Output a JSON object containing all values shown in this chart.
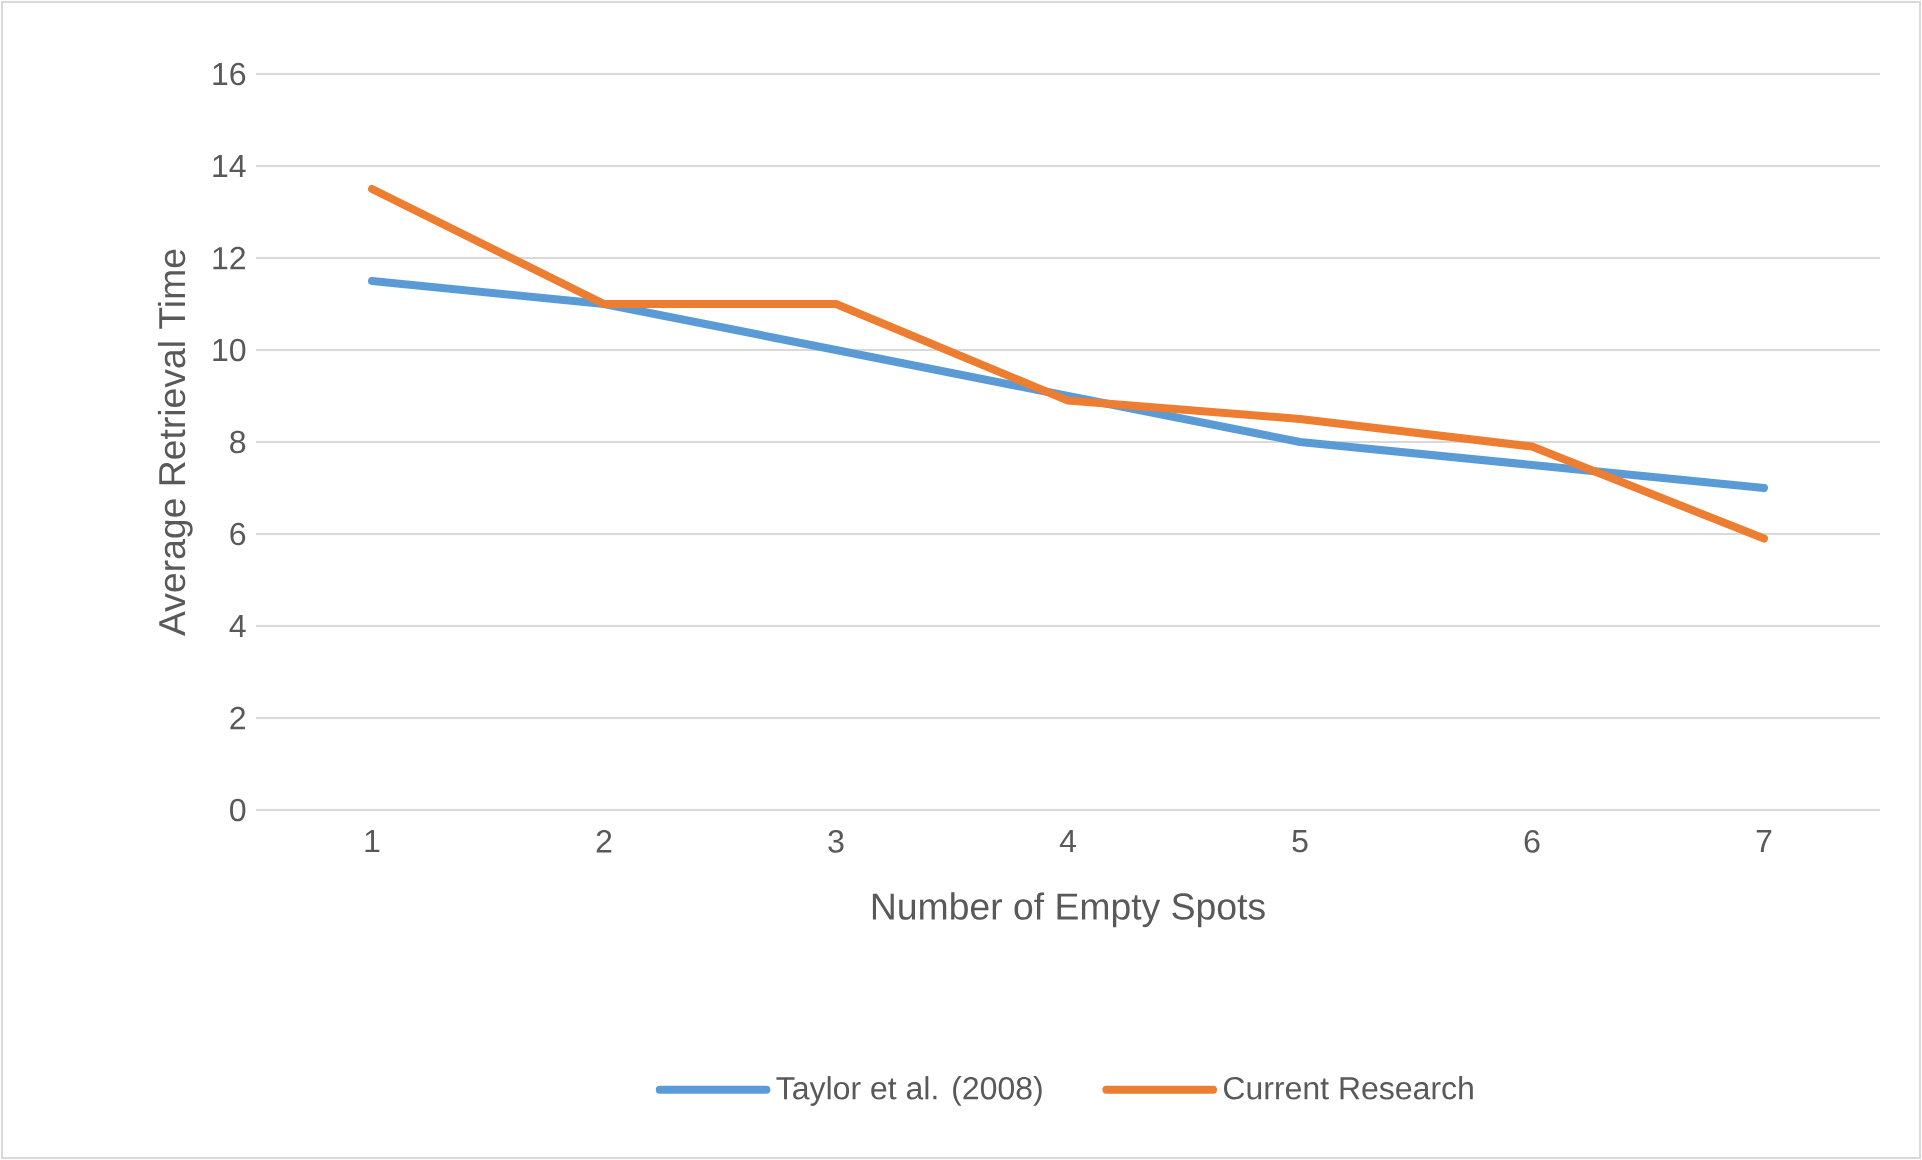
{
  "chart_data": {
    "type": "line",
    "xlabel": "Number of Empty Spots",
    "ylabel": "Average Retrieval Time",
    "categories": [
      "1",
      "2",
      "3",
      "4",
      "5",
      "6",
      "7"
    ],
    "series": [
      {
        "name": "Taylor et al. (2008)",
        "color": "#5b9bd5",
        "values": [
          11.5,
          11,
          10,
          9,
          8,
          7.5,
          7
        ]
      },
      {
        "name": "Current Research",
        "color": "#ed7d31",
        "values": [
          13.5,
          11,
          11,
          8.9,
          8.5,
          7.9,
          5.9
        ]
      }
    ],
    "ylim": [
      0,
      16
    ],
    "yticks": [
      0,
      2,
      4,
      6,
      8,
      10,
      12,
      14,
      16
    ],
    "grid": "y",
    "legend": "bottom",
    "marker": "none",
    "line_style": "solid"
  }
}
